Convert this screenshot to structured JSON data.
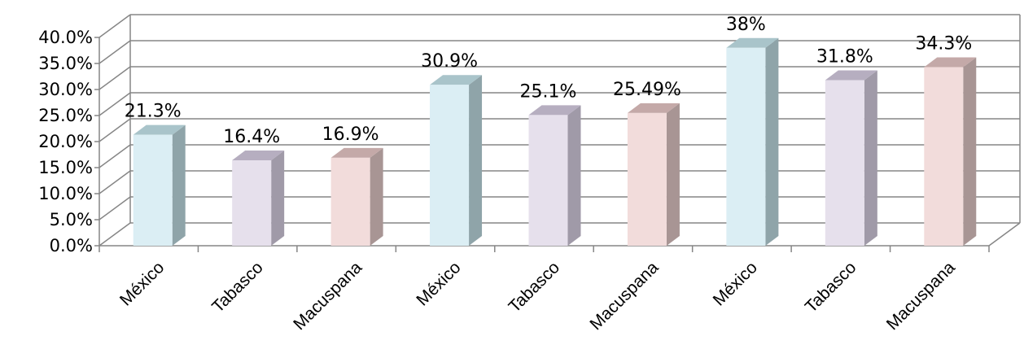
{
  "chart_data": {
    "type": "bar",
    "title": "",
    "xlabel": "",
    "ylabel": "",
    "ylim": [
      0,
      40
    ],
    "y_ticks": [
      0,
      5,
      10,
      15,
      20,
      25,
      30,
      35,
      40
    ],
    "y_tick_labels": [
      "0.0%",
      "5.0%",
      "10.0%",
      "15.0%",
      "20.0%",
      "25.0%",
      "30.0%",
      "35.0%",
      "40.0%"
    ],
    "grid": true,
    "legend": "none",
    "categories": [
      "México",
      "Tabasco",
      "Macuspana",
      "México",
      "Tabasco",
      "Macuspana",
      "México",
      "Tabasco",
      "Macuspana"
    ],
    "values": [
      21.3,
      16.4,
      16.9,
      30.9,
      25.1,
      25.49,
      38,
      31.8,
      34.3
    ],
    "data_labels": [
      "21.3%",
      "16.4%",
      "16.9%",
      "30.9%",
      "25.1%",
      "25.49%",
      "38%",
      "31.8%",
      "34.3%"
    ],
    "bar_colors": [
      "#dbeef4",
      "#e6e0ec",
      "#f2dcdb",
      "#dbeef4",
      "#e6e0ec",
      "#f2dcdb",
      "#dbeef4",
      "#e6e0ec",
      "#f2dcdb"
    ],
    "bar_side_colors": [
      "#8fa4a9",
      "#a09aa8",
      "#a89594",
      "#8fa4a9",
      "#a09aa8",
      "#a89594",
      "#8fa4a9",
      "#a09aa8",
      "#a89594"
    ],
    "bar_top_colors": [
      "#a9c4ca",
      "#b6aec0",
      "#c4a9a8",
      "#a9c4ca",
      "#b6aec0",
      "#c4a9a8",
      "#a9c4ca",
      "#b6aec0",
      "#c4a9a8"
    ],
    "gridline_color": "#868686"
  }
}
